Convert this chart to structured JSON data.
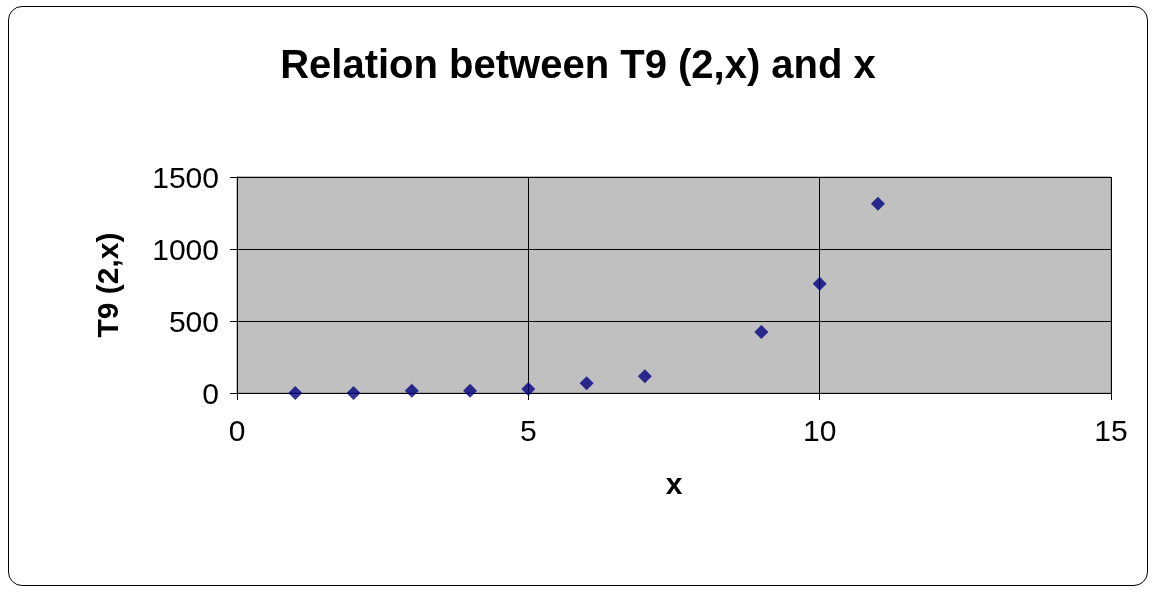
{
  "chart_data": {
    "type": "scatter",
    "title": "Relation between T9 (2,x) and x",
    "xlabel": "x",
    "ylabel": "T9 (2,x)",
    "x": [
      1,
      2,
      3,
      4,
      5,
      6,
      7,
      9,
      10,
      11
    ],
    "values": [
      0,
      0,
      15,
      15,
      27,
      68,
      117,
      424,
      758,
      1314
    ],
    "color": "#000080",
    "marker": "diamond",
    "xlim": [
      0,
      15
    ],
    "xticks": [
      0,
      5,
      10,
      15
    ],
    "ylim": [
      0,
      1500
    ],
    "yticks": [
      0,
      500,
      1000,
      1500
    ],
    "grid": true
  }
}
